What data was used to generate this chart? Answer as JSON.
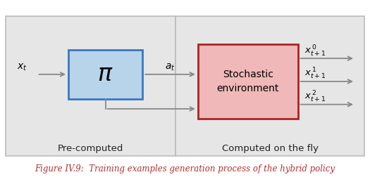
{
  "fig_width": 5.25,
  "fig_height": 2.52,
  "dpi": 100,
  "bg_color": "#ffffff",
  "panel_bg": "#e6e6e6",
  "pi_box_facecolor": "#b8d4ea",
  "pi_box_edgecolor": "#3a78bf",
  "stoch_box_facecolor": "#f0b8b8",
  "stoch_box_edgecolor": "#aa2222",
  "arrow_color": "#888888",
  "caption_color": "#b03030",
  "caption_text": "Figure IV.9:  Training examples generation process of the hybrid policy",
  "label_xt": "$x_t$",
  "label_at": "$a_t$",
  "label_pi": "$\\pi$",
  "stoch_text": "Stochastic\nenvironment",
  "label_precomputed": "Pre-computed",
  "label_computed": "Computed on the fly",
  "output_labels": [
    "$x_{t+1}^{\\,0}$",
    "$x_{t+1}^{\\,1}$",
    "$x_{t+1}^{\\,2}$"
  ],
  "panel_edge_color": "#bbbbbb"
}
